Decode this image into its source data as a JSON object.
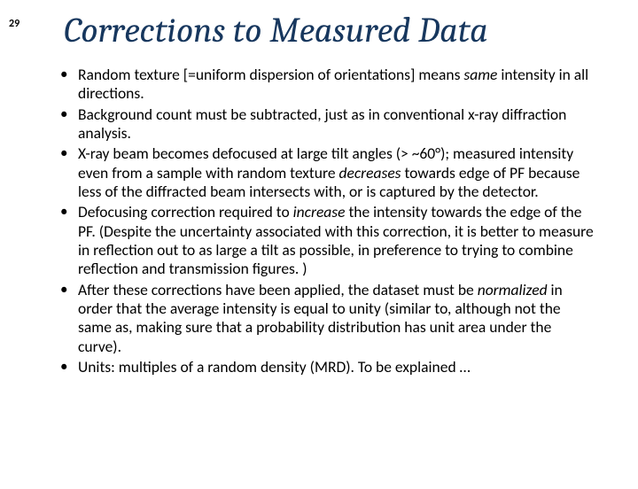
{
  "page_number": "29",
  "title": "Corrections to Measured Data",
  "colors": {
    "title_color": "#17375e",
    "text_color": "#000000",
    "background": "#ffffff"
  },
  "typography": {
    "title_font": "Cambria",
    "title_size_pt": 40,
    "title_style": "italic",
    "body_font": "Calibri",
    "body_size_pt": 17.5
  },
  "bullets": [
    {
      "segments": [
        {
          "text": "Random texture [=uniform dispersion of orientations] means "
        },
        {
          "text": "same",
          "italic": true
        },
        {
          "text": " intensity in all directions."
        }
      ]
    },
    {
      "segments": [
        {
          "text": "Background count must be subtracted, just as in conventional x-ray diffraction analysis."
        }
      ]
    },
    {
      "segments": [
        {
          "text": "X-ray beam becomes defocused at large tilt angles (> ~60°); measured intensity even from a sample with random texture "
        },
        {
          "text": "decreases",
          "italic": true
        },
        {
          "text": " towards edge of PF because less of the diffracted beam intersects with, or is captured by the detector."
        }
      ]
    },
    {
      "segments": [
        {
          "text": "Defocusing correction required to "
        },
        {
          "text": "increase",
          "italic": true
        },
        {
          "text": " the intensity towards the edge of the PF.  (Despite the uncertainty associated with this correction, it is better to measure in reflection out to as large a tilt as possible, in preference to trying to combine reflection and transmission figures. )"
        }
      ]
    },
    {
      "segments": [
        {
          "text": "After these corrections have been applied, the dataset must be "
        },
        {
          "text": "normalized",
          "italic": true
        },
        {
          "text": " in order that the average intensity is equal to unity (similar to, although not the same as, making sure that a probability distribution has unit area under the curve)."
        }
      ]
    },
    {
      "segments": [
        {
          "text": "Units: multiples of a random density (MRD).  To be explained …"
        }
      ]
    }
  ]
}
